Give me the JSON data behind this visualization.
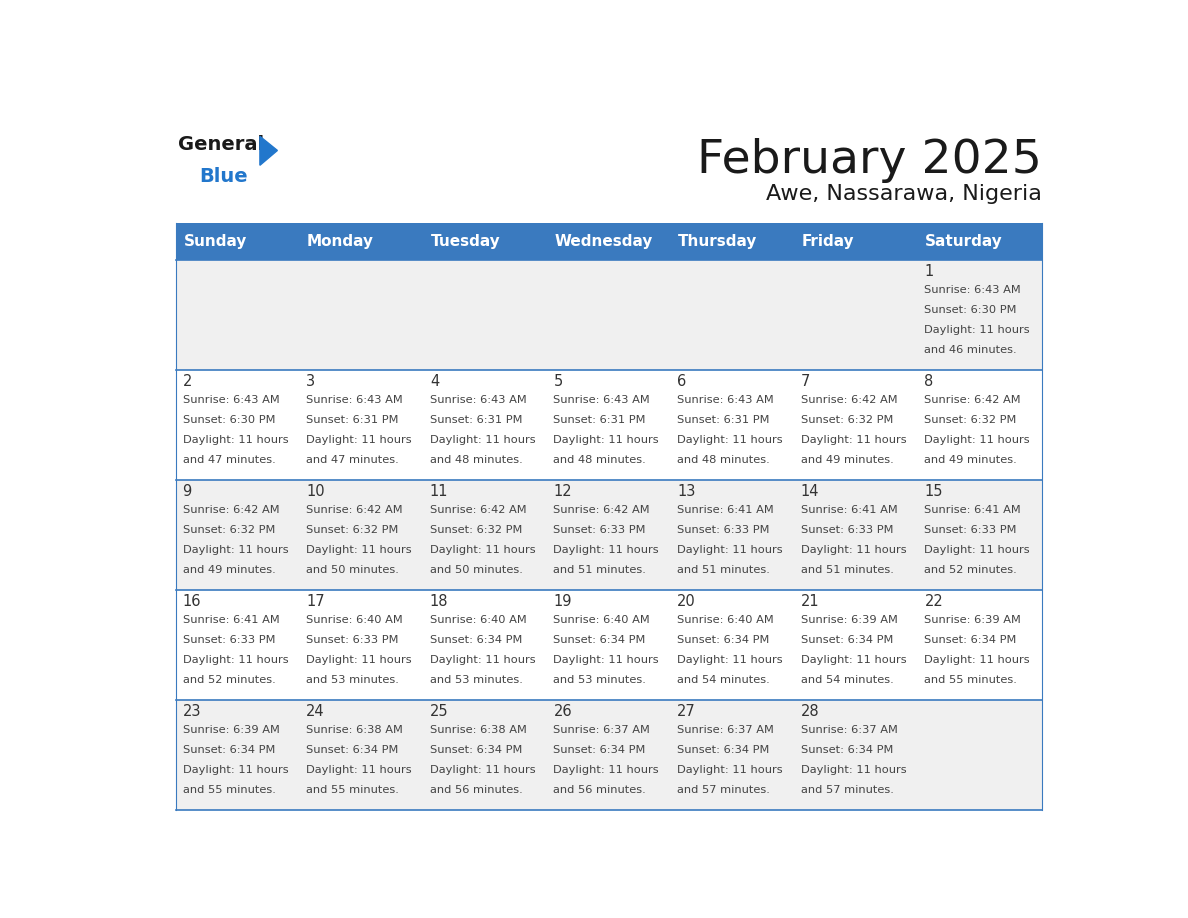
{
  "title": "February 2025",
  "subtitle": "Awe, Nassarawa, Nigeria",
  "header_bg": "#3a7abf",
  "header_text_color": "#ffffff",
  "cell_bg_light": "#f0f0f0",
  "cell_bg_white": "#ffffff",
  "day_text_color": "#333333",
  "info_text_color": "#555555",
  "border_color": "#3a7abf",
  "days_of_week": [
    "Sunday",
    "Monday",
    "Tuesday",
    "Wednesday",
    "Thursday",
    "Friday",
    "Saturday"
  ],
  "calendar": [
    [
      null,
      null,
      null,
      null,
      null,
      null,
      {
        "day": "1",
        "sunrise": "6:43 AM",
        "sunset": "6:30 PM",
        "daylight": "11 hours and 46 minutes."
      }
    ],
    [
      {
        "day": "2",
        "sunrise": "6:43 AM",
        "sunset": "6:30 PM",
        "daylight": "11 hours and 47 minutes."
      },
      {
        "day": "3",
        "sunrise": "6:43 AM",
        "sunset": "6:31 PM",
        "daylight": "11 hours and 47 minutes."
      },
      {
        "day": "4",
        "sunrise": "6:43 AM",
        "sunset": "6:31 PM",
        "daylight": "11 hours and 48 minutes."
      },
      {
        "day": "5",
        "sunrise": "6:43 AM",
        "sunset": "6:31 PM",
        "daylight": "11 hours and 48 minutes."
      },
      {
        "day": "6",
        "sunrise": "6:43 AM",
        "sunset": "6:31 PM",
        "daylight": "11 hours and 48 minutes."
      },
      {
        "day": "7",
        "sunrise": "6:42 AM",
        "sunset": "6:32 PM",
        "daylight": "11 hours and 49 minutes."
      },
      {
        "day": "8",
        "sunrise": "6:42 AM",
        "sunset": "6:32 PM",
        "daylight": "11 hours and 49 minutes."
      }
    ],
    [
      {
        "day": "9",
        "sunrise": "6:42 AM",
        "sunset": "6:32 PM",
        "daylight": "11 hours and 49 minutes."
      },
      {
        "day": "10",
        "sunrise": "6:42 AM",
        "sunset": "6:32 PM",
        "daylight": "11 hours and 50 minutes."
      },
      {
        "day": "11",
        "sunrise": "6:42 AM",
        "sunset": "6:32 PM",
        "daylight": "11 hours and 50 minutes."
      },
      {
        "day": "12",
        "sunrise": "6:42 AM",
        "sunset": "6:33 PM",
        "daylight": "11 hours and 51 minutes."
      },
      {
        "day": "13",
        "sunrise": "6:41 AM",
        "sunset": "6:33 PM",
        "daylight": "11 hours and 51 minutes."
      },
      {
        "day": "14",
        "sunrise": "6:41 AM",
        "sunset": "6:33 PM",
        "daylight": "11 hours and 51 minutes."
      },
      {
        "day": "15",
        "sunrise": "6:41 AM",
        "sunset": "6:33 PM",
        "daylight": "11 hours and 52 minutes."
      }
    ],
    [
      {
        "day": "16",
        "sunrise": "6:41 AM",
        "sunset": "6:33 PM",
        "daylight": "11 hours and 52 minutes."
      },
      {
        "day": "17",
        "sunrise": "6:40 AM",
        "sunset": "6:33 PM",
        "daylight": "11 hours and 53 minutes."
      },
      {
        "day": "18",
        "sunrise": "6:40 AM",
        "sunset": "6:34 PM",
        "daylight": "11 hours and 53 minutes."
      },
      {
        "day": "19",
        "sunrise": "6:40 AM",
        "sunset": "6:34 PM",
        "daylight": "11 hours and 53 minutes."
      },
      {
        "day": "20",
        "sunrise": "6:40 AM",
        "sunset": "6:34 PM",
        "daylight": "11 hours and 54 minutes."
      },
      {
        "day": "21",
        "sunrise": "6:39 AM",
        "sunset": "6:34 PM",
        "daylight": "11 hours and 54 minutes."
      },
      {
        "day": "22",
        "sunrise": "6:39 AM",
        "sunset": "6:34 PM",
        "daylight": "11 hours and 55 minutes."
      }
    ],
    [
      {
        "day": "23",
        "sunrise": "6:39 AM",
        "sunset": "6:34 PM",
        "daylight": "11 hours and 55 minutes."
      },
      {
        "day": "24",
        "sunrise": "6:38 AM",
        "sunset": "6:34 PM",
        "daylight": "11 hours and 55 minutes."
      },
      {
        "day": "25",
        "sunrise": "6:38 AM",
        "sunset": "6:34 PM",
        "daylight": "11 hours and 56 minutes."
      },
      {
        "day": "26",
        "sunrise": "6:37 AM",
        "sunset": "6:34 PM",
        "daylight": "11 hours and 56 minutes."
      },
      {
        "day": "27",
        "sunrise": "6:37 AM",
        "sunset": "6:34 PM",
        "daylight": "11 hours and 57 minutes."
      },
      {
        "day": "28",
        "sunrise": "6:37 AM",
        "sunset": "6:34 PM",
        "daylight": "11 hours and 57 minutes."
      },
      null
    ]
  ],
  "logo_general_color": "#1a1a1a",
  "logo_blue_color": "#2277cc",
  "logo_triangle_color": "#2277cc"
}
